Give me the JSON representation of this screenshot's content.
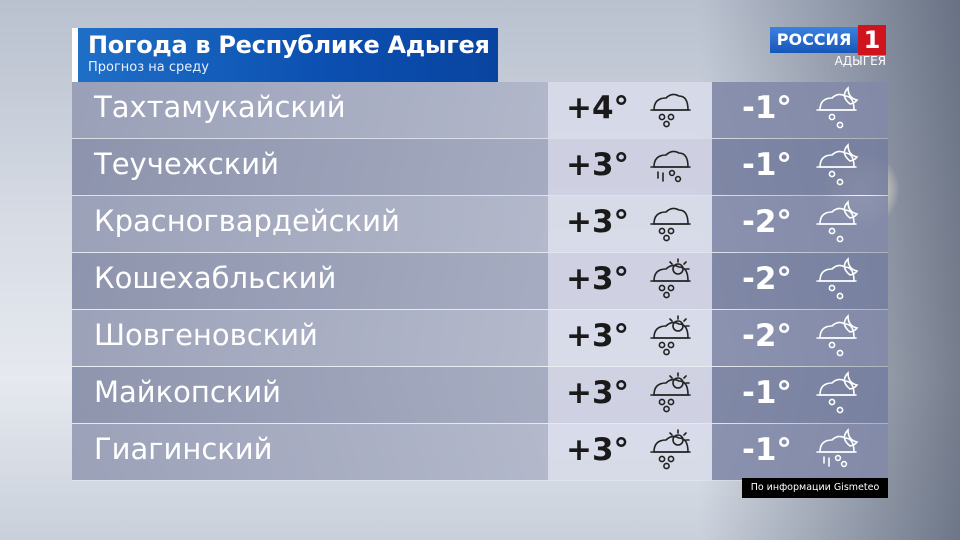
{
  "header": {
    "title": "Погода в Республике Адыгея",
    "subtitle": "Прогноз на среду"
  },
  "logo": {
    "channel": "РОССИЯ",
    "number": "1",
    "region": "АДЫГЕЯ"
  },
  "rows": [
    {
      "district": "Тахтамукайский",
      "day_temp": "+4°",
      "day_icon": "cloud-snow-icon",
      "night_temp": "-1°",
      "night_icon": "moon-cloud-snow-icon"
    },
    {
      "district": "Теучежский",
      "day_temp": "+3°",
      "day_icon": "cloud-rain-snow-icon",
      "night_temp": "-1°",
      "night_icon": "moon-cloud-snow-icon"
    },
    {
      "district": "Красногвардейский",
      "day_temp": "+3°",
      "day_icon": "cloud-snow-icon",
      "night_temp": "-2°",
      "night_icon": "moon-cloud-snow-icon"
    },
    {
      "district": "Кошехабльский",
      "day_temp": "+3°",
      "day_icon": "sun-cloud-snow-icon",
      "night_temp": "-2°",
      "night_icon": "moon-cloud-snow-icon"
    },
    {
      "district": "Шовгеновский",
      "day_temp": "+3°",
      "day_icon": "sun-cloud-snow-icon",
      "night_temp": "-2°",
      "night_icon": "moon-cloud-snow-icon"
    },
    {
      "district": "Майкопский",
      "day_temp": "+3°",
      "day_icon": "sun-cloud-snow-icon",
      "night_temp": "-1°",
      "night_icon": "moon-cloud-snow-icon"
    },
    {
      "district": "Гиагинский",
      "day_temp": "+3°",
      "day_icon": "sun-cloud-snow-icon",
      "night_temp": "-1°",
      "night_icon": "moon-cloud-rain-snow-icon"
    }
  ],
  "source": "По информации Gismeteo",
  "colors": {
    "title_bg": "#0b4fb0",
    "logo_red": "#d0141e"
  }
}
